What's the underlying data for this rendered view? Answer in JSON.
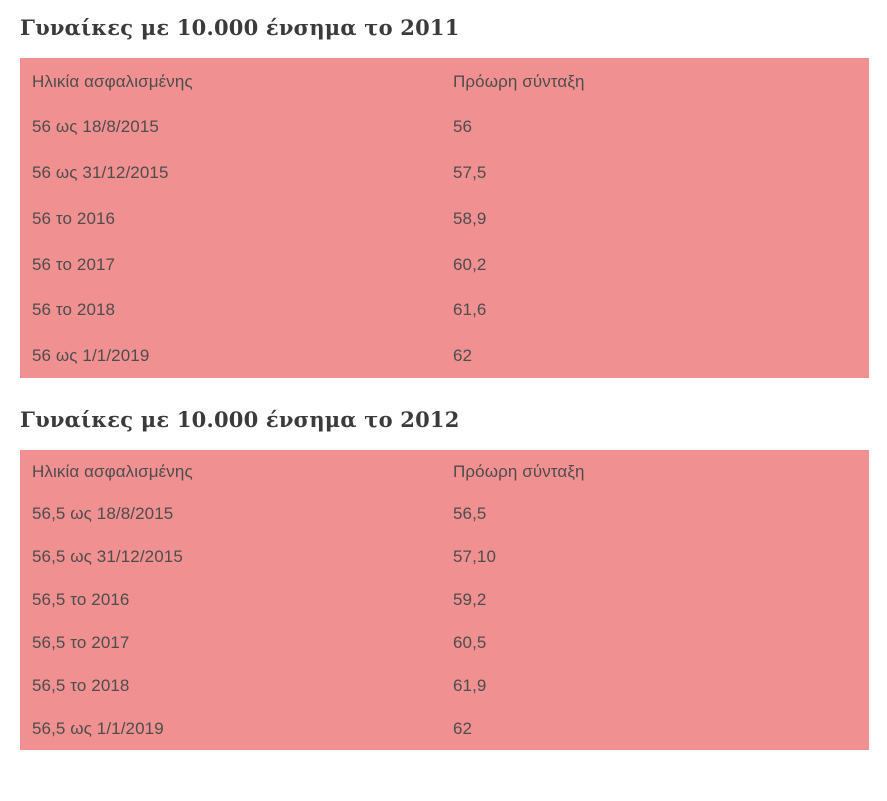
{
  "colors": {
    "table_background": "#f19090",
    "title_text": "#3b3b3b",
    "cell_text": "#4d4d4d",
    "page_background": "#ffffff"
  },
  "tables": [
    {
      "title": "Γυναίκες με 10.000 ένσημα το 2011",
      "headers": {
        "age": "Ηλικία ασφαλισμένης",
        "pension": "Πρόωρη σύνταξη"
      },
      "rows": [
        {
          "age": "56 ως 18/8/2015",
          "pension": "56"
        },
        {
          "age": "56 ως 31/12/2015",
          "pension": "57,5"
        },
        {
          "age": "56 το 2016",
          "pension": "58,9"
        },
        {
          "age": "56 το 2017",
          "pension": "60,2"
        },
        {
          "age": "56 το 2018",
          "pension": "61,6"
        },
        {
          "age": "56 ως 1/1/2019",
          "pension": "62"
        }
      ]
    },
    {
      "title": "Γυναίκες με 10.000 ένσημα το 2012",
      "headers": {
        "age": "Ηλικία ασφαλισμένης",
        "pension": "Πρόωρη σύνταξη"
      },
      "rows": [
        {
          "age": "56,5 ως 18/8/2015",
          "pension": "56,5"
        },
        {
          "age": "56,5 ως 31/12/2015",
          "pension": "57,10"
        },
        {
          "age": "56,5 το 2016",
          "pension": "59,2"
        },
        {
          "age": "56,5 το 2017",
          "pension": "60,5"
        },
        {
          "age": "56,5 το 2018",
          "pension": "61,9"
        },
        {
          "age": "56,5 ως 1/1/2019",
          "pension": "62"
        }
      ]
    }
  ]
}
